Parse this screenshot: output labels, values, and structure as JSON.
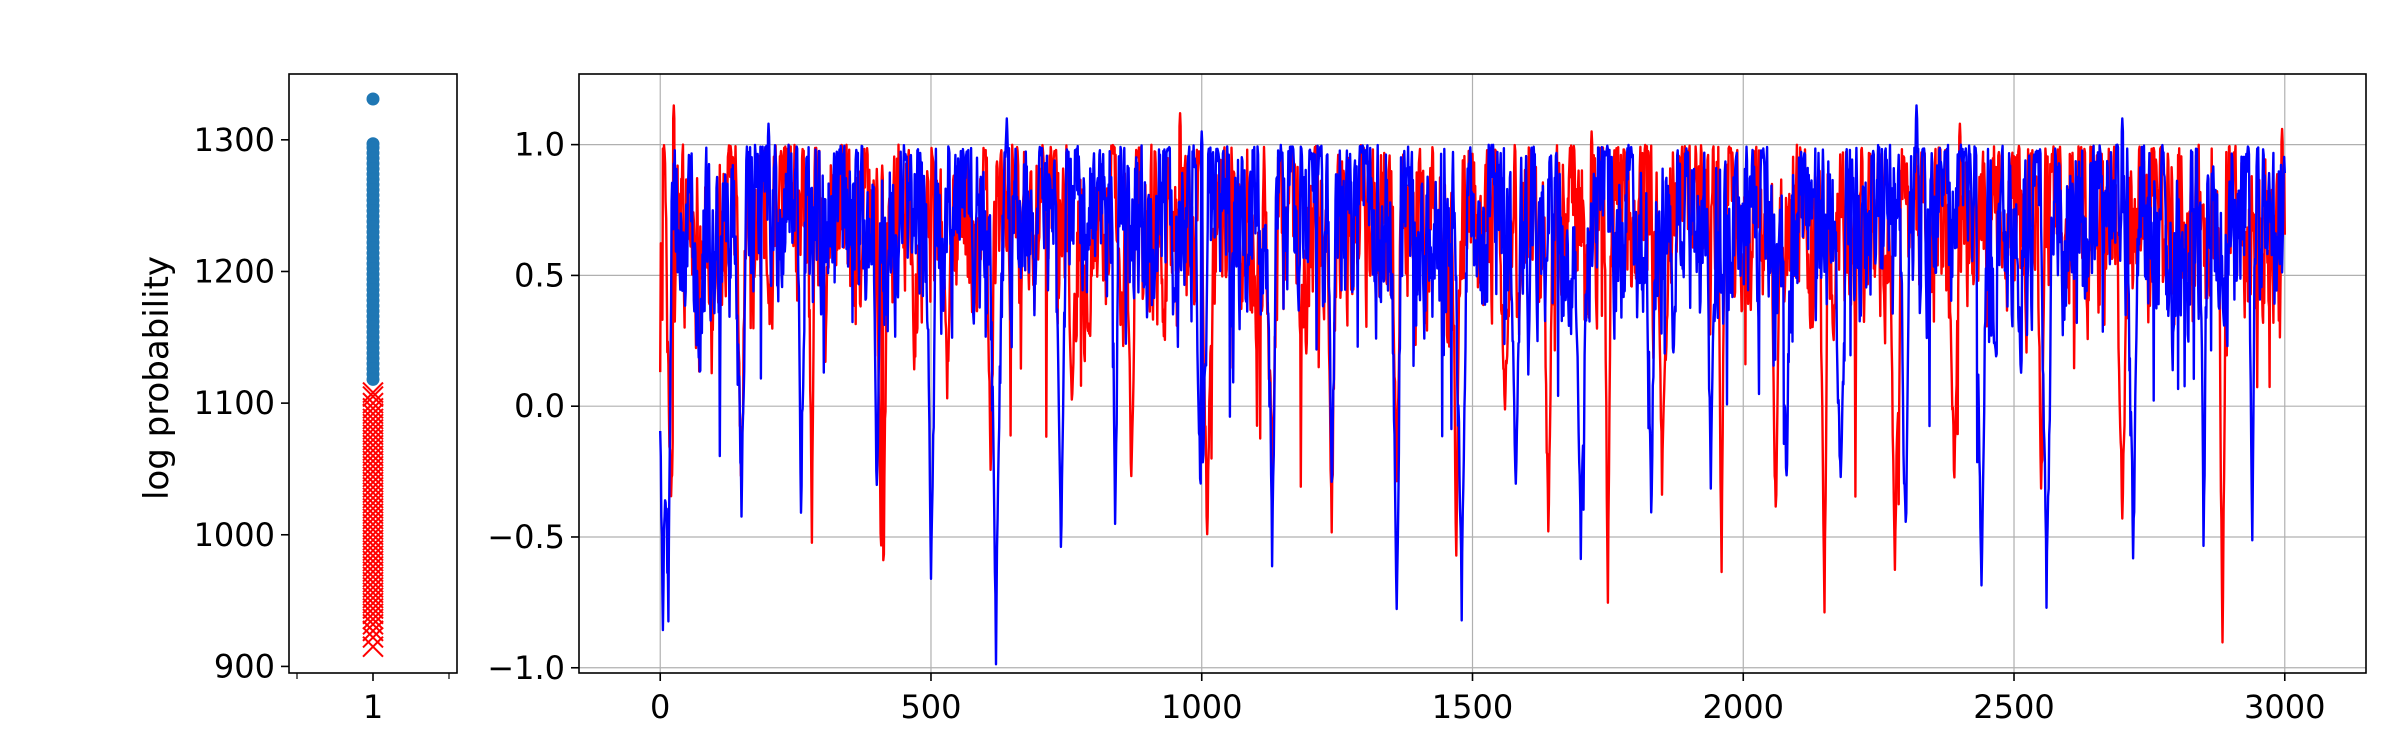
{
  "chart_data": [
    {
      "type": "scatter",
      "title": "",
      "xlabel": "",
      "ylabel": "log probability",
      "xlim": [
        0.7,
        1.3
      ],
      "ylim": [
        895,
        1350
      ],
      "xticks": [
        1
      ],
      "xtick_labels": [
        "1"
      ],
      "yticks": [
        900,
        1000,
        1100,
        1200,
        1300
      ],
      "ytick_labels": [
        "900",
        "1000",
        "1100",
        "1200",
        "1300"
      ],
      "grid": false,
      "series": [
        {
          "marker": "circle",
          "color": "#1f77b4",
          "x": 1,
          "values": [
            1331,
            1297,
            1294,
            1290,
            1286,
            1282,
            1278,
            1274,
            1270,
            1266,
            1262,
            1258,
            1254,
            1250,
            1246,
            1242,
            1238,
            1234,
            1230,
            1226,
            1222,
            1218,
            1214,
            1210,
            1206,
            1202,
            1198,
            1194,
            1190,
            1186,
            1182,
            1178,
            1174,
            1170,
            1166,
            1162,
            1158,
            1154,
            1150,
            1146,
            1142,
            1138,
            1134,
            1130,
            1126,
            1122,
            1118
          ]
        },
        {
          "marker": "x",
          "color": "#ff0000",
          "x": 1,
          "values": [
            1108,
            1105,
            1100,
            1096,
            1092,
            1088,
            1084,
            1080,
            1076,
            1072,
            1068,
            1064,
            1060,
            1056,
            1052,
            1048,
            1044,
            1040,
            1036,
            1032,
            1028,
            1024,
            1020,
            1016,
            1012,
            1008,
            1004,
            1000,
            996,
            992,
            988,
            984,
            980,
            976,
            972,
            968,
            964,
            960,
            956,
            952,
            948,
            944,
            940,
            936,
            932,
            927,
            922,
            915
          ]
        }
      ]
    },
    {
      "type": "line",
      "title": "",
      "xlabel": "",
      "ylabel": "",
      "xlim": [
        -150,
        3150
      ],
      "ylim": [
        -1.02,
        1.27
      ],
      "xticks": [
        0,
        500,
        1000,
        1500,
        2000,
        2500,
        3000
      ],
      "xtick_labels": [
        "0",
        "500",
        "1000",
        "1500",
        "2000",
        "2500",
        "3000"
      ],
      "yticks": [
        -1.0,
        -0.5,
        0.0,
        0.5,
        1.0
      ],
      "ytick_labels": [
        "−1.0",
        "−0.5",
        "0.0",
        "0.5",
        "1.0"
      ],
      "grid": true,
      "x_range": [
        0,
        3000
      ],
      "series": [
        {
          "color": "#ff0000",
          "dips": [
            [
              20,
              -0.4
            ],
            [
              95,
              0.2
            ],
            [
              150,
              -0.3
            ],
            [
              280,
              -0.45
            ],
            [
              410,
              -0.86
            ],
            [
              530,
              0.1
            ],
            [
              610,
              -0.3
            ],
            [
              760,
              0.05
            ],
            [
              870,
              -0.3
            ],
            [
              1010,
              -0.53
            ],
            [
              1130,
              -0.3
            ],
            [
              1240,
              -0.45
            ],
            [
              1360,
              -0.3
            ],
            [
              1470,
              -0.62
            ],
            [
              1560,
              0.0
            ],
            [
              1640,
              -0.53
            ],
            [
              1750,
              -0.73
            ],
            [
              1850,
              -0.3
            ],
            [
              1960,
              -0.58
            ],
            [
              2060,
              -0.4
            ],
            [
              2150,
              -0.74
            ],
            [
              2280,
              -0.62
            ],
            [
              2390,
              -0.3
            ],
            [
              2550,
              -0.32
            ],
            [
              2700,
              -0.4
            ],
            [
              2885,
              -0.86
            ]
          ],
          "peaks": [
            [
              25,
              1.15
            ],
            [
              410,
              0.92
            ],
            [
              960,
              1.12
            ],
            [
              1720,
              1.05
            ],
            [
              2400,
              1.08
            ],
            [
              2995,
              1.06
            ]
          ]
        },
        {
          "color": "#0000ff",
          "dips": [
            [
              5,
              -0.82
            ],
            [
              15,
              -0.79
            ],
            [
              150,
              -0.42
            ],
            [
              260,
              -0.43
            ],
            [
              400,
              -0.3
            ],
            [
              500,
              -0.65
            ],
            [
              620,
              -0.92
            ],
            [
              740,
              -0.55
            ],
            [
              840,
              -0.45
            ],
            [
              1000,
              -0.47
            ],
            [
              1130,
              -0.55
            ],
            [
              1240,
              -0.35
            ],
            [
              1360,
              -0.81
            ],
            [
              1480,
              -0.76
            ],
            [
              1580,
              -0.3
            ],
            [
              1700,
              -0.53
            ],
            [
              1830,
              -0.43
            ],
            [
              1940,
              -0.3
            ],
            [
              2080,
              -0.32
            ],
            [
              2180,
              -0.3
            ],
            [
              2300,
              -0.5
            ],
            [
              2440,
              -0.7
            ],
            [
              2560,
              -0.7
            ],
            [
              2720,
              -0.53
            ],
            [
              2850,
              -0.5
            ],
            [
              2940,
              -0.47
            ]
          ],
          "peaks": [
            [
              200,
              1.08
            ],
            [
              640,
              1.1
            ],
            [
              1000,
              1.05
            ],
            [
              2320,
              1.15
            ],
            [
              2700,
              1.1
            ]
          ]
        }
      ]
    }
  ]
}
